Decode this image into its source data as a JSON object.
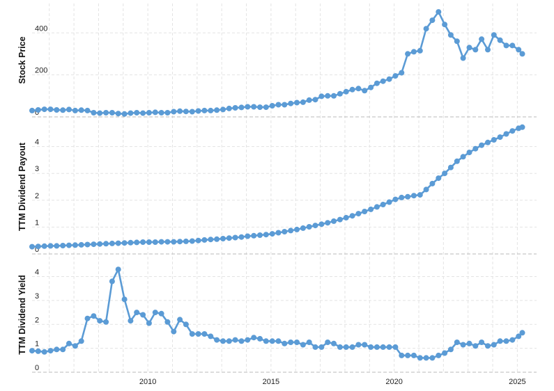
{
  "colors": {
    "series": "#5b9bd5",
    "grid": "#e3e3e3",
    "axis": "#b8b8b8"
  },
  "chart_data": [
    {
      "type": "line",
      "ylabel": "Stock Price",
      "ylim": [
        0,
        540
      ],
      "yticks": [
        0,
        200,
        400
      ],
      "xlim": [
        2005.3,
        2025.3
      ],
      "xticks": [
        2010,
        2015,
        2020,
        2025
      ],
      "grid": true,
      "x": [
        2005.3,
        2005.55,
        2005.8,
        2006.05,
        2006.3,
        2006.55,
        2006.8,
        2007.05,
        2007.3,
        2007.55,
        2007.8,
        2008.05,
        2008.3,
        2008.55,
        2008.8,
        2009.05,
        2009.3,
        2009.55,
        2009.8,
        2010.05,
        2010.3,
        2010.55,
        2010.8,
        2011.05,
        2011.3,
        2011.55,
        2011.8,
        2012.05,
        2012.3,
        2012.55,
        2012.8,
        2013.05,
        2013.3,
        2013.55,
        2013.8,
        2014.05,
        2014.3,
        2014.55,
        2014.8,
        2015.05,
        2015.3,
        2015.55,
        2015.8,
        2016.05,
        2016.3,
        2016.55,
        2016.8,
        2017.05,
        2017.3,
        2017.55,
        2017.8,
        2018.05,
        2018.3,
        2018.55,
        2018.8,
        2019.05,
        2019.3,
        2019.55,
        2019.8,
        2020.05,
        2020.3,
        2020.55,
        2020.8,
        2021.05,
        2021.3,
        2021.55,
        2021.8,
        2022.05,
        2022.3,
        2022.55,
        2022.8,
        2023.05,
        2023.3,
        2023.55,
        2023.8,
        2024.05,
        2024.3,
        2024.55,
        2024.8,
        2025.05,
        2025.2
      ],
      "series": [
        {
          "values": [
            30,
            33,
            36,
            36,
            33,
            32,
            35,
            30,
            32,
            30,
            20,
            18,
            20,
            20,
            16,
            14,
            18,
            20,
            18,
            20,
            22,
            20,
            20,
            25,
            27,
            26,
            25,
            28,
            30,
            30,
            32,
            35,
            40,
            43,
            45,
            48,
            48,
            46,
            46,
            53,
            58,
            58,
            64,
            68,
            70,
            80,
            82,
            98,
            100,
            100,
            110,
            120,
            130,
            135,
            125,
            140,
            160,
            170,
            180,
            195,
            210,
            300,
            310,
            315,
            420,
            460,
            500,
            440,
            390,
            360,
            280,
            330,
            320,
            370,
            320,
            390,
            365,
            340,
            340,
            320,
            300
          ]
        }
      ]
    },
    {
      "type": "line",
      "ylabel": "TTM Dividend Payout",
      "ylim": [
        0,
        5
      ],
      "yticks": [
        0,
        1,
        2,
        3,
        4
      ],
      "xlim": [
        2005.3,
        2025.3
      ],
      "xticks": [
        2010,
        2015,
        2020,
        2025
      ],
      "grid": true,
      "x": [
        2005.3,
        2005.55,
        2005.8,
        2006.05,
        2006.3,
        2006.55,
        2006.8,
        2007.05,
        2007.3,
        2007.55,
        2007.8,
        2008.05,
        2008.3,
        2008.55,
        2008.8,
        2009.05,
        2009.3,
        2009.55,
        2009.8,
        2010.05,
        2010.3,
        2010.55,
        2010.8,
        2011.05,
        2011.3,
        2011.55,
        2011.8,
        2012.05,
        2012.3,
        2012.55,
        2012.8,
        2013.05,
        2013.3,
        2013.55,
        2013.8,
        2014.05,
        2014.3,
        2014.55,
        2014.8,
        2015.05,
        2015.3,
        2015.55,
        2015.8,
        2016.05,
        2016.3,
        2016.55,
        2016.8,
        2017.05,
        2017.3,
        2017.55,
        2017.8,
        2018.05,
        2018.3,
        2018.55,
        2018.8,
        2019.05,
        2019.3,
        2019.55,
        2019.8,
        2020.05,
        2020.3,
        2020.55,
        2020.8,
        2021.05,
        2021.3,
        2021.55,
        2021.8,
        2022.05,
        2022.3,
        2022.55,
        2022.8,
        2023.05,
        2023.3,
        2023.55,
        2023.8,
        2024.05,
        2024.3,
        2024.55,
        2024.8,
        2025.05,
        2025.2
      ],
      "series": [
        {
          "values": [
            0.27,
            0.28,
            0.29,
            0.3,
            0.3,
            0.31,
            0.32,
            0.33,
            0.34,
            0.35,
            0.36,
            0.37,
            0.38,
            0.39,
            0.4,
            0.41,
            0.42,
            0.43,
            0.44,
            0.44,
            0.44,
            0.45,
            0.45,
            0.45,
            0.46,
            0.47,
            0.48,
            0.5,
            0.52,
            0.54,
            0.55,
            0.57,
            0.59,
            0.61,
            0.63,
            0.66,
            0.68,
            0.7,
            0.72,
            0.75,
            0.79,
            0.83,
            0.87,
            0.91,
            0.96,
            1.01,
            1.06,
            1.11,
            1.16,
            1.22,
            1.28,
            1.35,
            1.42,
            1.5,
            1.58,
            1.66,
            1.75,
            1.84,
            1.93,
            2.03,
            2.1,
            2.13,
            2.17,
            2.2,
            2.4,
            2.62,
            2.82,
            3.0,
            3.22,
            3.45,
            3.62,
            3.78,
            3.92,
            4.05,
            4.15,
            4.25,
            4.35,
            4.47,
            4.58,
            4.68,
            4.72
          ]
        }
      ]
    },
    {
      "type": "line",
      "ylabel": "TTM Dividend Yield",
      "ylim": [
        0,
        4.8
      ],
      "yticks": [
        0,
        1,
        2,
        3,
        4
      ],
      "xlim": [
        2005.3,
        2025.3
      ],
      "xticks": [
        2010,
        2015,
        2020,
        2025
      ],
      "grid": true,
      "x": [
        2005.3,
        2005.55,
        2005.8,
        2006.05,
        2006.3,
        2006.55,
        2006.8,
        2007.05,
        2007.3,
        2007.55,
        2007.8,
        2008.05,
        2008.3,
        2008.55,
        2008.8,
        2009.05,
        2009.3,
        2009.55,
        2009.8,
        2010.05,
        2010.3,
        2010.55,
        2010.8,
        2011.05,
        2011.3,
        2011.55,
        2011.8,
        2012.05,
        2012.3,
        2012.55,
        2012.8,
        2013.05,
        2013.3,
        2013.55,
        2013.8,
        2014.05,
        2014.3,
        2014.55,
        2014.8,
        2015.05,
        2015.3,
        2015.55,
        2015.8,
        2016.05,
        2016.3,
        2016.55,
        2016.8,
        2017.05,
        2017.3,
        2017.55,
        2017.8,
        2018.05,
        2018.3,
        2018.55,
        2018.8,
        2019.05,
        2019.3,
        2019.55,
        2019.8,
        2020.05,
        2020.3,
        2020.55,
        2020.8,
        2021.05,
        2021.3,
        2021.55,
        2021.8,
        2022.05,
        2022.3,
        2022.55,
        2022.8,
        2023.05,
        2023.3,
        2023.55,
        2023.8,
        2024.05,
        2024.3,
        2024.55,
        2024.8,
        2025.05,
        2025.2
      ],
      "series": [
        {
          "values": [
            0.9,
            0.88,
            0.85,
            0.9,
            0.95,
            0.95,
            1.2,
            1.1,
            1.3,
            2.25,
            2.35,
            2.15,
            2.1,
            3.8,
            4.3,
            3.05,
            2.15,
            2.5,
            2.4,
            2.05,
            2.5,
            2.45,
            2.1,
            1.7,
            2.2,
            2.0,
            1.6,
            1.6,
            1.6,
            1.5,
            1.35,
            1.3,
            1.3,
            1.35,
            1.3,
            1.35,
            1.45,
            1.4,
            1.3,
            1.3,
            1.3,
            1.2,
            1.25,
            1.25,
            1.15,
            1.25,
            1.05,
            1.05,
            1.25,
            1.2,
            1.05,
            1.05,
            1.05,
            1.15,
            1.15,
            1.05,
            1.05,
            1.05,
            1.05,
            1.05,
            0.7,
            0.7,
            0.7,
            0.6,
            0.6,
            0.6,
            0.7,
            0.8,
            0.95,
            1.25,
            1.15,
            1.2,
            1.1,
            1.25,
            1.1,
            1.15,
            1.3,
            1.3,
            1.35,
            1.5,
            1.65
          ]
        }
      ]
    }
  ]
}
